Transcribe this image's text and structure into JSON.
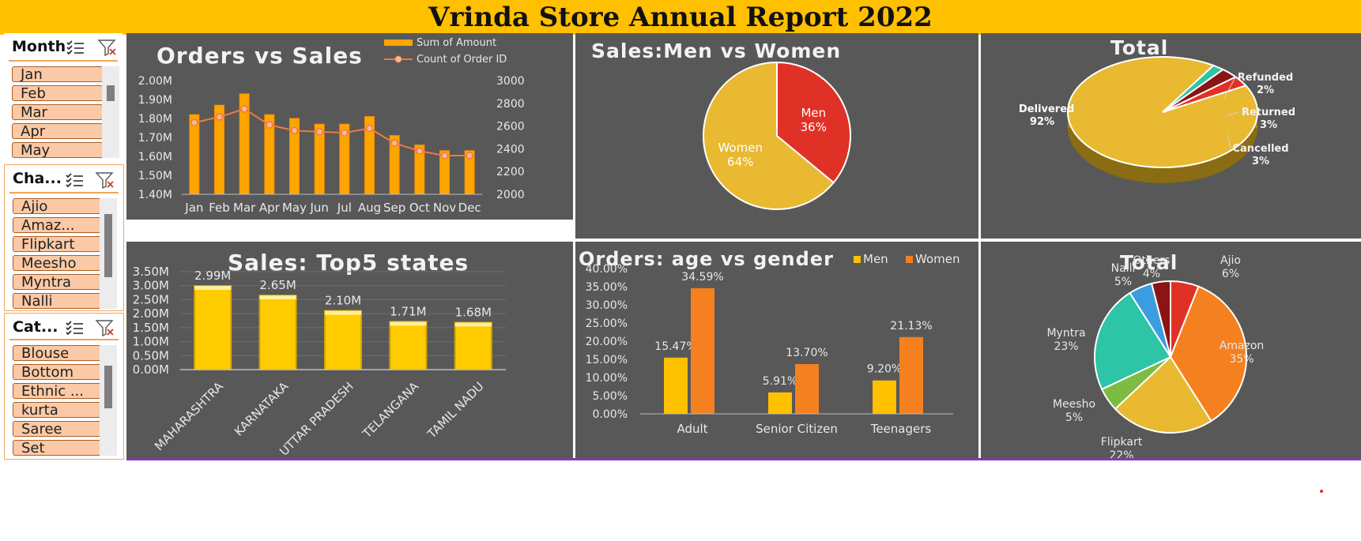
{
  "title": "Vrinda Store Annual Report 2022",
  "colors": {
    "title_bar": "#ffc000",
    "panel": "#585858",
    "gold": "#e8b931",
    "orange": "#f28c28",
    "red": "#e03126"
  },
  "slicers": [
    {
      "title": "Month",
      "items": [
        "Jan",
        "Feb",
        "Mar",
        "Apr",
        "May"
      ]
    },
    {
      "title": "Cha...",
      "items": [
        "Ajio",
        "Amaz...",
        "Flipkart",
        "Meesho",
        "Myntra",
        "Nalli"
      ]
    },
    {
      "title": "Cat...",
      "items": [
        "Blouse",
        "Bottom",
        "Ethnic ...",
        "kurta",
        "Saree",
        "Set"
      ]
    }
  ],
  "slicer_icons": [
    "multi-select-icon",
    "clear-filter-icon"
  ],
  "panels": {
    "orders_vs_sales": "Orders vs Sales",
    "men_vs_women": "Sales:Men vs Women",
    "total_status": "Total",
    "top_states": "Sales: Top5 states",
    "age_gender": "Orders: age vs gender",
    "total_channel": "Total"
  },
  "chart_data": [
    {
      "type": "bar",
      "name": "orders-vs-sales",
      "categories": [
        "Jan",
        "Feb",
        "Mar",
        "Apr",
        "May",
        "Jun",
        "Jul",
        "Aug",
        "Sep",
        "Oct",
        "Nov",
        "Dec"
      ],
      "series": [
        {
          "name": "Sum of Amount",
          "type": "bar",
          "axis": "left",
          "values": [
            1.82,
            1.87,
            1.93,
            1.82,
            1.8,
            1.77,
            1.77,
            1.81,
            1.71,
            1.66,
            1.63,
            1.63
          ]
        },
        {
          "name": "Count of Order ID",
          "type": "line",
          "axis": "right",
          "values": [
            2630,
            2680,
            2750,
            2610,
            2560,
            2550,
            2540,
            2580,
            2450,
            2380,
            2340,
            2340
          ]
        }
      ],
      "left_ticks": [
        "1.40M",
        "1.50M",
        "1.60M",
        "1.70M",
        "1.80M",
        "1.90M",
        "2.00M"
      ],
      "right_ticks": [
        "2000",
        "2200",
        "2400",
        "2600",
        "2800",
        "3000"
      ],
      "ylim": [
        1.4,
        2.0
      ],
      "y2lim": [
        2000,
        3000
      ]
    },
    {
      "type": "pie",
      "name": "men-vs-women",
      "slices": [
        {
          "label": "Men",
          "value": 36,
          "pct": "36%",
          "color": "#e03126"
        },
        {
          "label": "Women",
          "value": 64,
          "pct": "64%",
          "color": "#e8b931"
        }
      ]
    },
    {
      "type": "pie",
      "name": "order-status",
      "slices": [
        {
          "label": "Delivered",
          "value": 92,
          "pct": "92%",
          "color": "#e8b931"
        },
        {
          "label": "Refunded",
          "value": 2,
          "pct": "2%",
          "color": "#2ec4a6"
        },
        {
          "label": "Returned",
          "value": 3,
          "pct": "3%",
          "color": "#8b1414"
        },
        {
          "label": "Cancelled",
          "value": 3,
          "pct": "3%",
          "color": "#e03126"
        }
      ]
    },
    {
      "type": "bar",
      "name": "top5-states",
      "categories": [
        "MAHARASHTRA",
        "KARNATAKA",
        "UTTAR PRADESH",
        "TELANGANA",
        "TAMIL NADU"
      ],
      "values": [
        2.99,
        2.65,
        2.1,
        1.71,
        1.68
      ],
      "data_labels": [
        "2.99M",
        "2.65M",
        "2.10M",
        "1.71M",
        "1.68M"
      ],
      "ticks": [
        "0.00M",
        "0.50M",
        "1.00M",
        "1.50M",
        "2.00M",
        "2.50M",
        "3.00M",
        "3.50M"
      ],
      "ylim": [
        0,
        3.5
      ]
    },
    {
      "type": "bar",
      "name": "age-vs-gender",
      "categories": [
        "Adult",
        "Senior Citizen",
        "Teenagers"
      ],
      "series": [
        {
          "name": "Men",
          "values": [
            15.47,
            5.91,
            9.2
          ],
          "labels": [
            "15.47%",
            "5.91%",
            "9.20%"
          ],
          "color": "#ffc000"
        },
        {
          "name": "Women",
          "values": [
            34.59,
            13.7,
            21.13
          ],
          "labels": [
            "34.59%",
            "13.70%",
            "21.13%"
          ],
          "color": "#f5801f"
        }
      ],
      "ticks": [
        "0.00%",
        "5.00%",
        "10.00%",
        "15.00%",
        "20.00%",
        "25.00%",
        "30.00%",
        "35.00%",
        "40.00%"
      ],
      "ylim": [
        0,
        40
      ]
    },
    {
      "type": "pie",
      "name": "channels",
      "slices": [
        {
          "label": "Ajio",
          "value": 6,
          "pct": "6%",
          "color": "#e03126"
        },
        {
          "label": "Amazon",
          "value": 35,
          "pct": "35%",
          "color": "#f5801f"
        },
        {
          "label": "Flipkart",
          "value": 22,
          "pct": "22%",
          "color": "#e8b931"
        },
        {
          "label": "Meesho",
          "value": 5,
          "pct": "5%",
          "color": "#7dbb42"
        },
        {
          "label": "Myntra",
          "value": 23,
          "pct": "23%",
          "color": "#2ec4a6"
        },
        {
          "label": "Nalli",
          "value": 5,
          "pct": "5%",
          "color": "#3b9de0"
        },
        {
          "label": "Others",
          "value": 4,
          "pct": "4%",
          "color": "#8b1414"
        }
      ]
    }
  ]
}
